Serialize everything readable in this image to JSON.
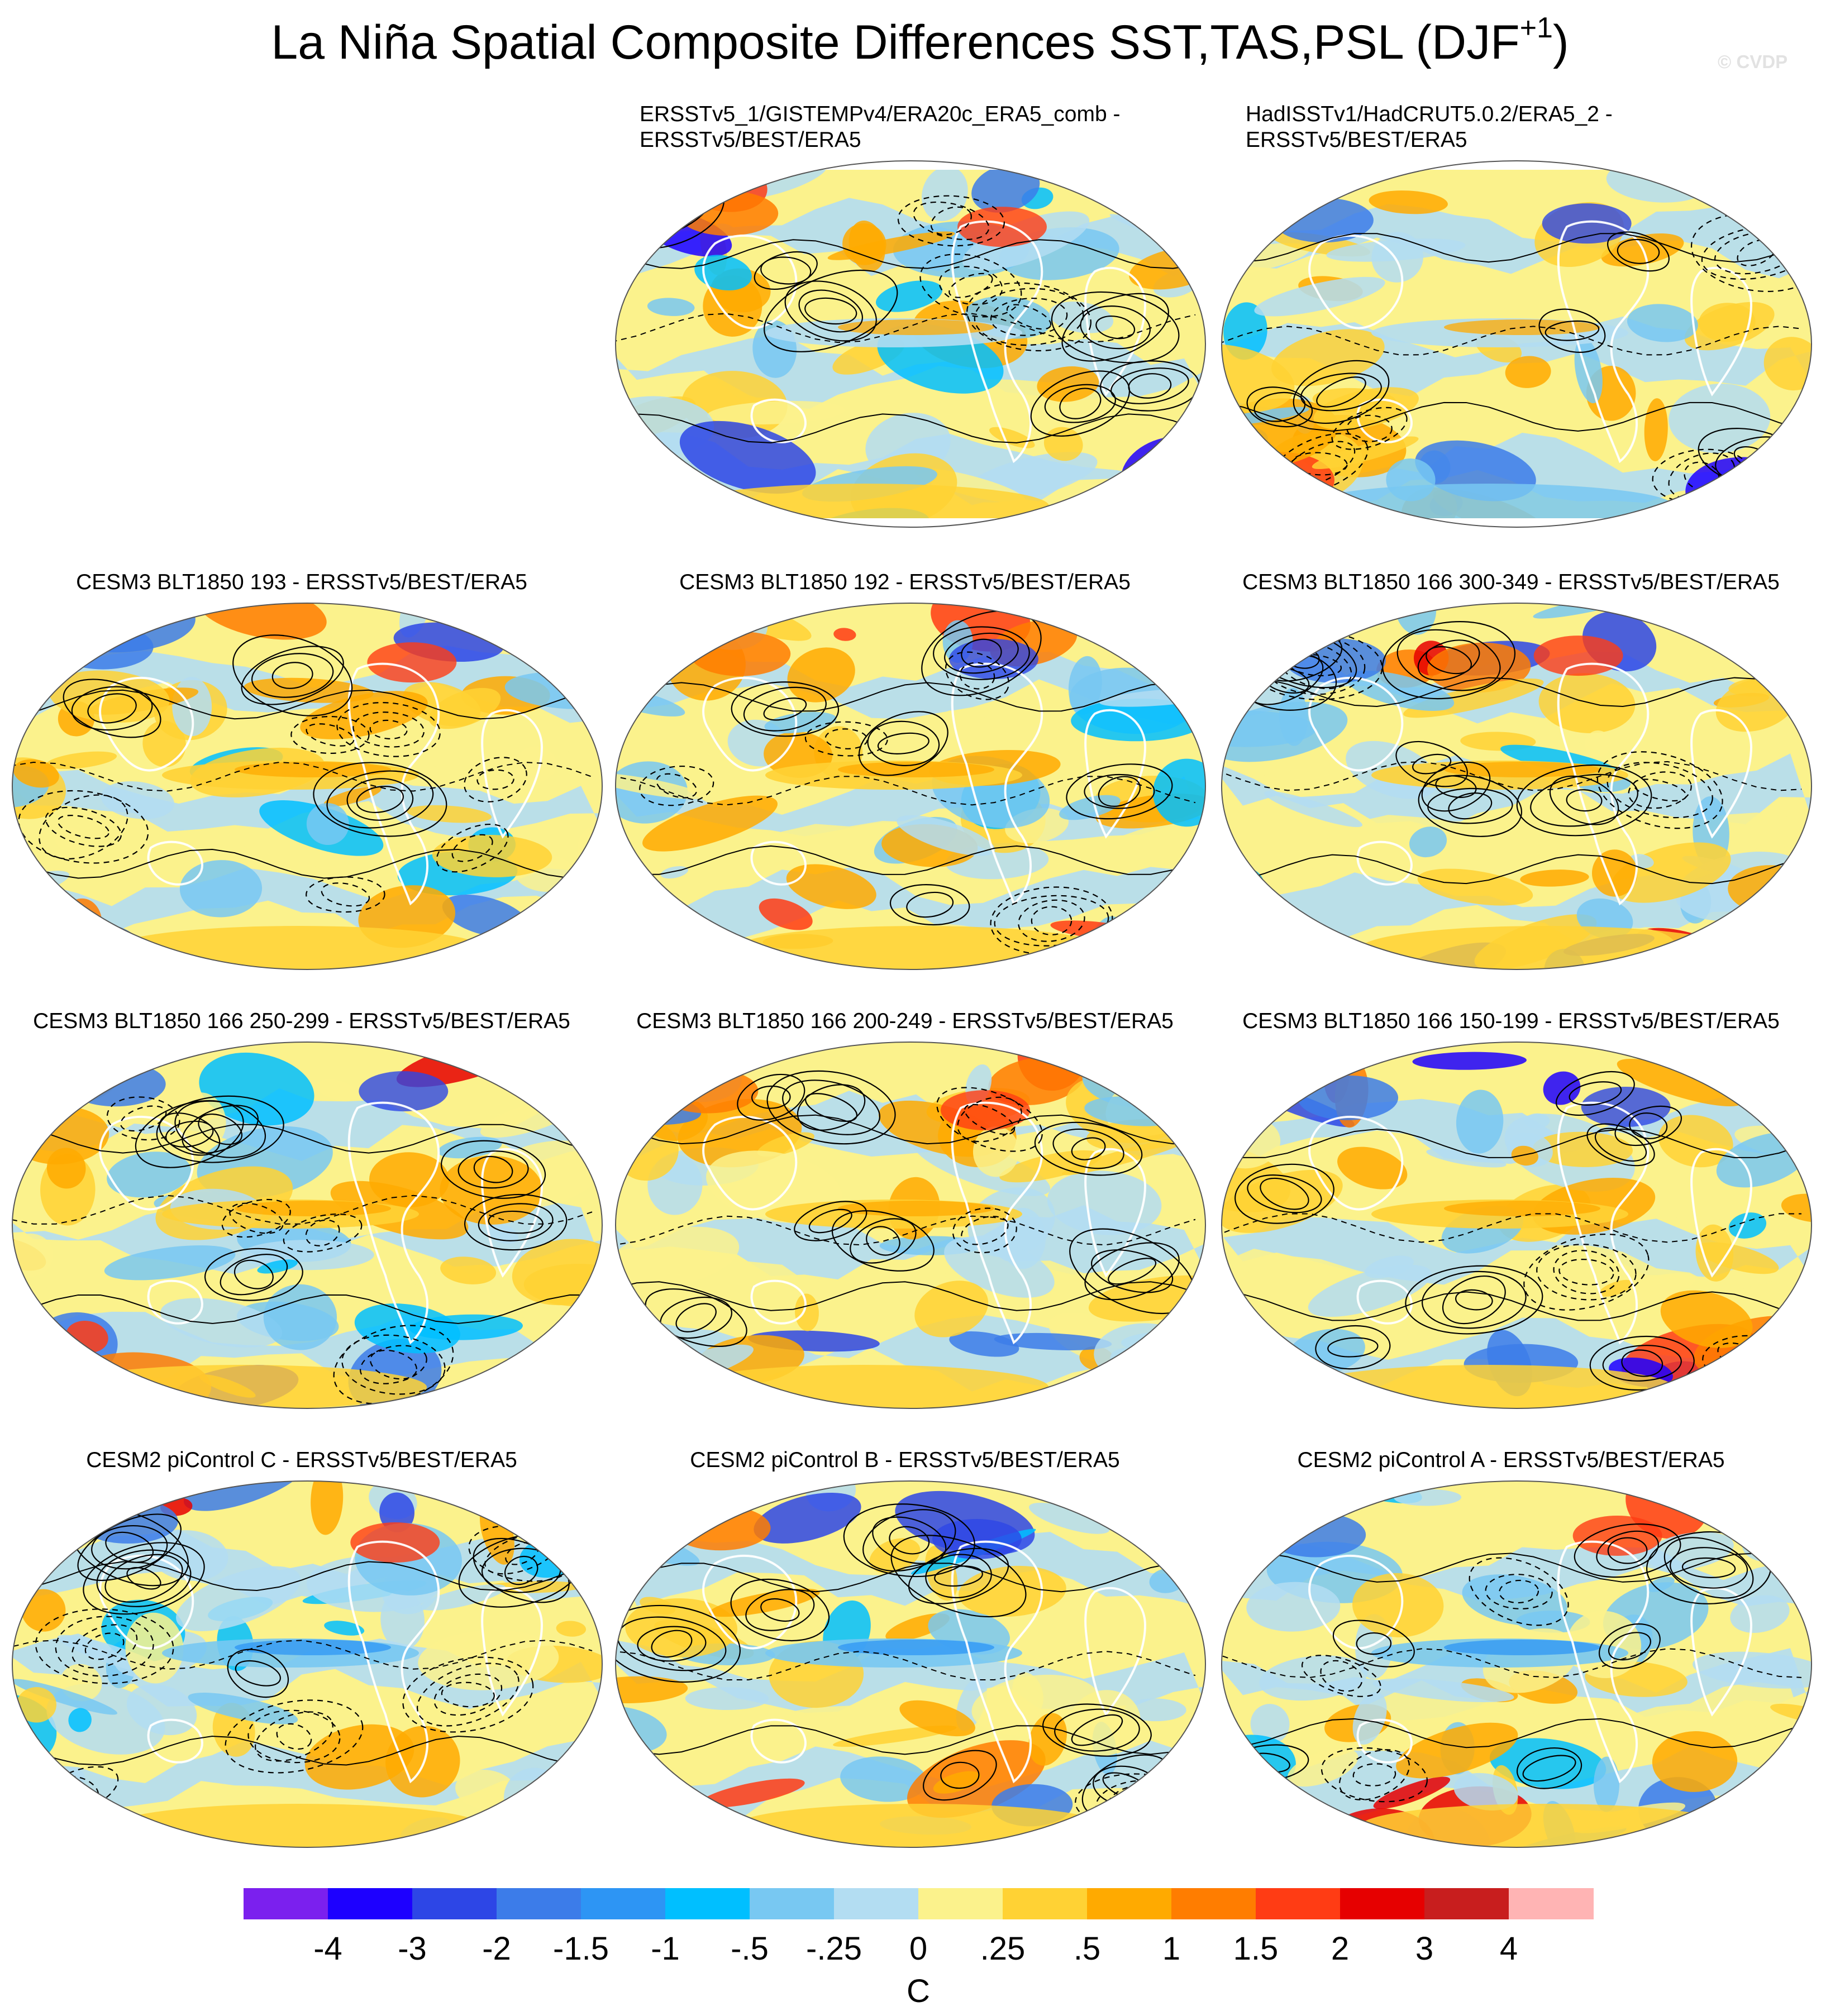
{
  "title": {
    "main": "La Niña Spatial Composite Differences SST,TAS,PSL (DJF",
    "superscript": "+1",
    "close": ")"
  },
  "copyright": "© CVDP",
  "panels": [
    {
      "id": "p-era20c",
      "title_lines": [
        "ERSSTv5_1/GISTEMPv4/ERA20c_ERA5_comb -",
        "ERSSTv5/BEST/ERA5"
      ]
    },
    {
      "id": "p-hadisst",
      "title_lines": [
        "HadISSTv1/HadCRUT5.0.2/ERA5_2 -",
        "ERSSTv5/BEST/ERA5"
      ]
    },
    {
      "id": "p-cesm3-193",
      "title_lines": [
        "CESM3 BLT1850 193 - ERSSTv5/BEST/ERA5"
      ]
    },
    {
      "id": "p-cesm3-192",
      "title_lines": [
        "CESM3 BLT1850 192 - ERSSTv5/BEST/ERA5"
      ]
    },
    {
      "id": "p-cesm3-166-300",
      "title_lines": [
        "CESM3 BLT1850 166 300-349 - ERSSTv5/BEST/ERA5"
      ]
    },
    {
      "id": "p-cesm3-166-250",
      "title_lines": [
        "CESM3 BLT1850 166 250-299 - ERSSTv5/BEST/ERA5"
      ]
    },
    {
      "id": "p-cesm3-166-200",
      "title_lines": [
        "CESM3 BLT1850 166 200-249 - ERSSTv5/BEST/ERA5"
      ]
    },
    {
      "id": "p-cesm3-166-150",
      "title_lines": [
        "CESM3 BLT1850 166 150-199 - ERSSTv5/BEST/ERA5"
      ]
    },
    {
      "id": "p-cesm2-c",
      "title_lines": [
        "CESM2 piControl C - ERSSTv5/BEST/ERA5"
      ]
    },
    {
      "id": "p-cesm2-b",
      "title_lines": [
        "CESM2 piControl B - ERSSTv5/BEST/ERA5"
      ]
    },
    {
      "id": "p-cesm2-a",
      "title_lines": [
        "CESM2 piControl A - ERSSTv5/BEST/ERA5"
      ]
    }
  ],
  "colorbar": {
    "labels": [
      "-4",
      "-3",
      "-2",
      "-1.5",
      "-1",
      "-.5",
      "-.25",
      "0",
      ".25",
      ".5",
      "1",
      "1.5",
      "2",
      "3",
      "4"
    ],
    "colors": [
      "#7b20ee",
      "#1d00ff",
      "#2d46e6",
      "#3c7ce9",
      "#2d95f4",
      "#00bfff",
      "#78c8f2",
      "#b3ddf2",
      "#fbf28c",
      "#ffd234",
      "#ffaa00",
      "#ff7d00",
      "#ff3c14",
      "#e60000",
      "#c81e1e",
      "#ffb4b4"
    ],
    "units": "C"
  }
}
